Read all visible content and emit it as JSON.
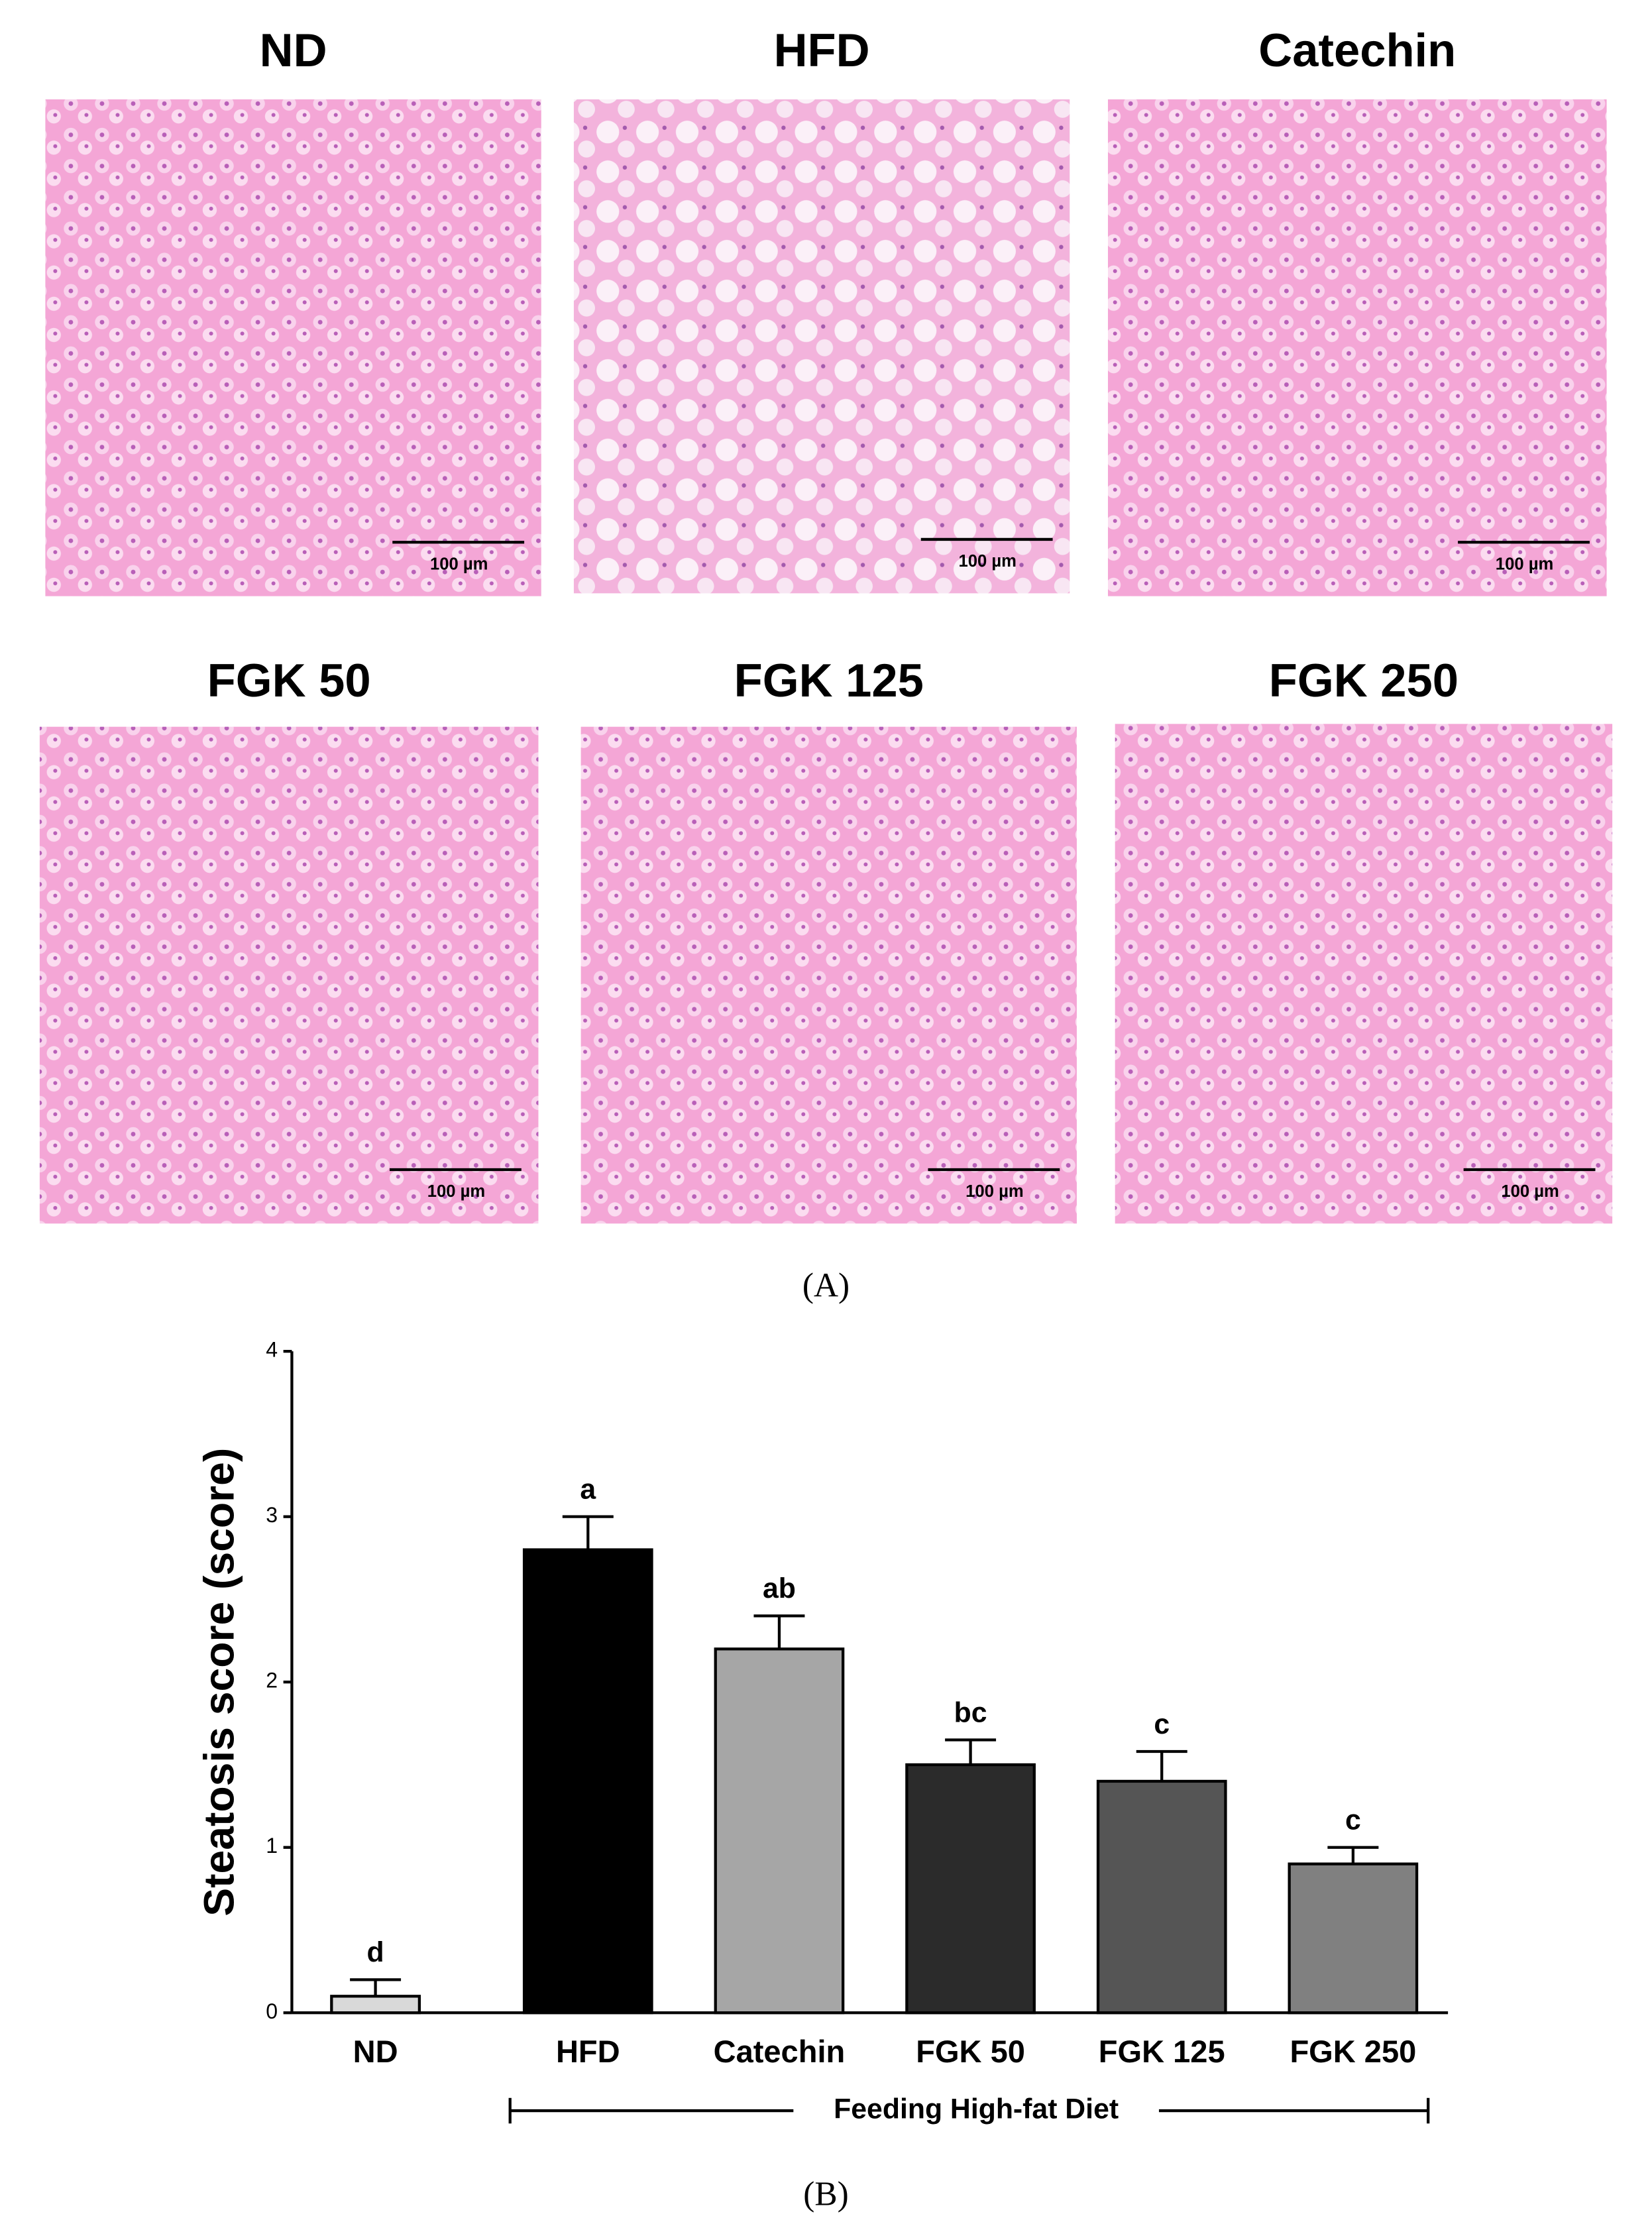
{
  "panel_a": {
    "label": "(A)",
    "images": [
      {
        "title": "ND",
        "scale_bar": "100 µm"
      },
      {
        "title": "HFD",
        "scale_bar": "100 µm"
      },
      {
        "title": "Catechin",
        "scale_bar": "100 µm"
      },
      {
        "title": "FGK 50",
        "scale_bar": "100 µm"
      },
      {
        "title": "FGK 125",
        "scale_bar": "100 µm"
      },
      {
        "title": "FGK 250",
        "scale_bar": "100 µm"
      }
    ]
  },
  "chart_data": {
    "type": "bar",
    "label": "(B)",
    "y_label": "Steatosis score (score)",
    "categories": [
      "ND",
      "HFD",
      "Catechin",
      "FGK 50",
      "FGK 125",
      "FGK 250"
    ],
    "values": [
      0.1,
      2.8,
      2.2,
      1.5,
      1.4,
      0.9
    ],
    "errors": [
      0.1,
      0.2,
      0.2,
      0.15,
      0.18,
      0.1
    ],
    "colors": [
      "#d9d9d9",
      "#000000",
      "#a6a6a6",
      "#2b2b2b",
      "#555555",
      "#808080"
    ],
    "annotations": [
      "d",
      "a",
      "ab",
      "bc",
      "c",
      "c"
    ],
    "bracket_label": "Feeding High-fat Diet",
    "ylim": [
      0,
      4
    ],
    "yticks": [
      0,
      1,
      2,
      3,
      4
    ]
  }
}
